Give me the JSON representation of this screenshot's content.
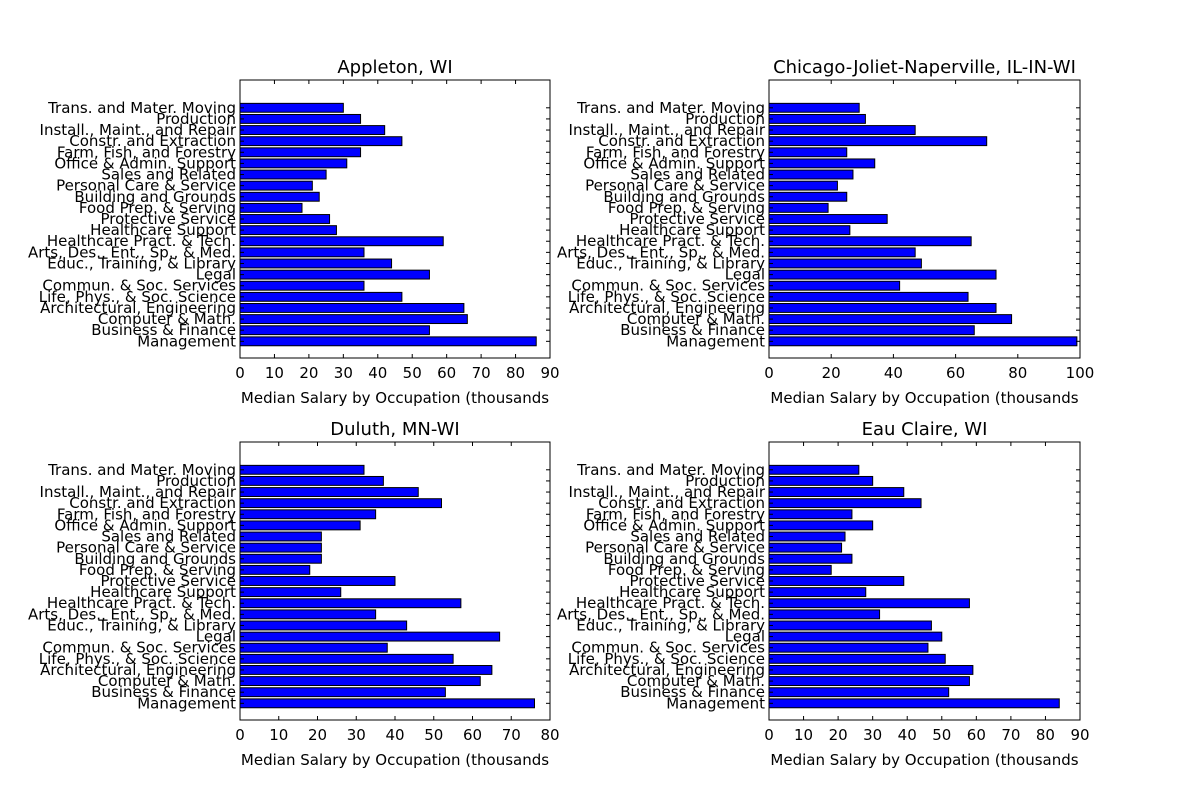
{
  "chart_data": [
    {
      "type": "bar",
      "orientation": "horizontal",
      "title": "Appleton, WI",
      "xlabel": "Median Salary by Occupation (thousands",
      "xlim": [
        0,
        90
      ],
      "xticks": [
        0,
        10,
        20,
        30,
        40,
        50,
        60,
        70,
        80,
        90
      ],
      "categories": [
        "Management",
        "Business & Finance",
        "Computer & Math.",
        "Architectural, Engineering",
        "Life, Phys., & Soc. Science",
        "Commun. & Soc. Services",
        "Legal",
        "Educ., Training, & Library",
        "Arts, Des., Ent., Sp., & Med.",
        "Healthcare Pract. & Tech.",
        "Healthcare Support",
        "Protective Service",
        "Food Prep. & Serving",
        "Building and Grounds",
        "Personal Care & Service",
        "Sales and Related",
        "Office & Admin. Support",
        "Farm, Fish, and Forestry",
        "Constr. and Extraction",
        "Install., Maint., and Repair",
        "Production",
        "Trans. and Mater. Moving"
      ],
      "values": [
        86,
        55,
        66,
        65,
        47,
        36,
        55,
        44,
        36,
        59,
        28,
        26,
        18,
        23,
        21,
        25,
        31,
        35,
        47,
        42,
        35,
        30
      ],
      "bar_color": "#0000ff"
    },
    {
      "type": "bar",
      "orientation": "horizontal",
      "title": "Chicago-Joliet-Naperville, IL-IN-WI",
      "xlabel": "Median Salary by Occupation (thousands",
      "xlim": [
        0,
        100
      ],
      "xticks": [
        0,
        20,
        40,
        60,
        80,
        100
      ],
      "categories": [
        "Management",
        "Business & Finance",
        "Computer & Math.",
        "Architectural, Engineering",
        "Life, Phys., & Soc. Science",
        "Commun. & Soc. Services",
        "Legal",
        "Educ., Training, & Library",
        "Arts, Des., Ent., Sp., & Med.",
        "Healthcare Pract. & Tech.",
        "Healthcare Support",
        "Protective Service",
        "Food Prep. & Serving",
        "Building and Grounds",
        "Personal Care & Service",
        "Sales and Related",
        "Office & Admin. Support",
        "Farm, Fish, and Forestry",
        "Constr. and Extraction",
        "Install., Maint., and Repair",
        "Production",
        "Trans. and Mater. Moving"
      ],
      "values": [
        99,
        66,
        78,
        73,
        64,
        42,
        73,
        49,
        47,
        65,
        26,
        38,
        19,
        25,
        22,
        27,
        34,
        25,
        70,
        47,
        31,
        29
      ],
      "bar_color": "#0000ff"
    },
    {
      "type": "bar",
      "orientation": "horizontal",
      "title": "Duluth, MN-WI",
      "xlabel": "Median Salary by Occupation (thousands",
      "xlim": [
        0,
        80
      ],
      "xticks": [
        0,
        10,
        20,
        30,
        40,
        50,
        60,
        70,
        80
      ],
      "categories": [
        "Management",
        "Business & Finance",
        "Computer & Math.",
        "Architectural, Engineering",
        "Life, Phys., & Soc. Science",
        "Commun. & Soc. Services",
        "Legal",
        "Educ., Training, & Library",
        "Arts, Des., Ent., Sp., & Med.",
        "Healthcare Pract. & Tech.",
        "Healthcare Support",
        "Protective Service",
        "Food Prep. & Serving",
        "Building and Grounds",
        "Personal Care & Service",
        "Sales and Related",
        "Office & Admin. Support",
        "Farm, Fish, and Forestry",
        "Constr. and Extraction",
        "Install., Maint., and Repair",
        "Production",
        "Trans. and Mater. Moving"
      ],
      "values": [
        76,
        53,
        62,
        65,
        55,
        38,
        67,
        43,
        35,
        57,
        26,
        40,
        18,
        21,
        21,
        21,
        31,
        35,
        52,
        46,
        37,
        32
      ],
      "bar_color": "#0000ff"
    },
    {
      "type": "bar",
      "orientation": "horizontal",
      "title": "Eau Claire, WI",
      "xlabel": "Median Salary by Occupation (thousands",
      "xlim": [
        0,
        90
      ],
      "xticks": [
        0,
        10,
        20,
        30,
        40,
        50,
        60,
        70,
        80,
        90
      ],
      "categories": [
        "Management",
        "Business & Finance",
        "Computer & Math.",
        "Architectural, Engineering",
        "Life, Phys., & Soc. Science",
        "Commun. & Soc. Services",
        "Legal",
        "Educ., Training, & Library",
        "Arts, Des., Ent., Sp., & Med.",
        "Healthcare Pract. & Tech.",
        "Healthcare Support",
        "Protective Service",
        "Food Prep. & Serving",
        "Building and Grounds",
        "Personal Care & Service",
        "Sales and Related",
        "Office & Admin. Support",
        "Farm, Fish, and Forestry",
        "Constr. and Extraction",
        "Install., Maint., and Repair",
        "Production",
        "Trans. and Mater. Moving"
      ],
      "values": [
        84,
        52,
        58,
        59,
        51,
        46,
        50,
        47,
        32,
        58,
        28,
        39,
        18,
        24,
        21,
        22,
        30,
        24,
        44,
        39,
        30,
        26
      ],
      "bar_color": "#0000ff"
    }
  ]
}
